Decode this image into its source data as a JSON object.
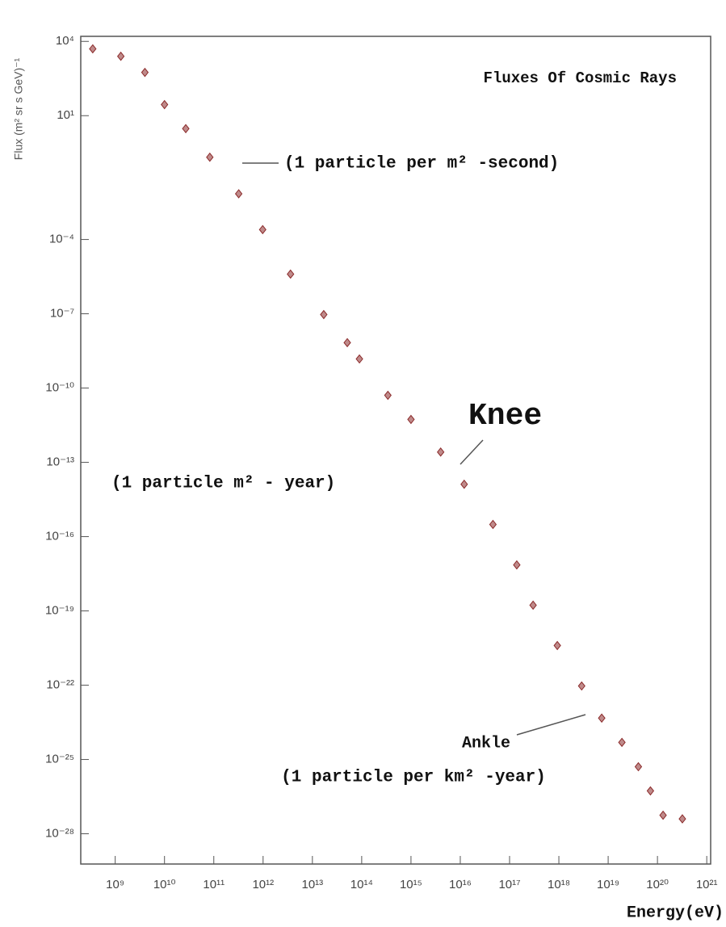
{
  "chart_data": {
    "type": "scatter",
    "title": "Fluxes Of Cosmic Rays",
    "x_label": "Energy(eV)",
    "y_label": "Flux (m² sr s GeV)⁻¹",
    "log_x": true,
    "log_y": true,
    "color": "#8b2a2a",
    "xlim": [
      200000000.0,
      1.2e+21
    ],
    "ylim": [
      6e-30,
      16000.0
    ],
    "xticks": [
      {
        "value": 1000000000.0,
        "label": "10⁹"
      },
      {
        "value": 10000000000.0,
        "label": "10¹⁰"
      },
      {
        "value": 100000000000.0,
        "label": "10¹¹"
      },
      {
        "value": 1000000000000.0,
        "label": "10¹²"
      },
      {
        "value": 10000000000000.0,
        "label": "10¹³"
      },
      {
        "value": 100000000000000.0,
        "label": "10¹⁴"
      },
      {
        "value": 1000000000000000.0,
        "label": "10¹⁵"
      },
      {
        "value": 1e+16,
        "label": "10¹⁶"
      },
      {
        "value": 1e+17,
        "label": "10¹⁷"
      },
      {
        "value": 1e+18,
        "label": "10¹⁸"
      },
      {
        "value": 1e+19,
        "label": "10¹⁹"
      },
      {
        "value": 1e+20,
        "label": "10²⁰"
      },
      {
        "value": 1e+21,
        "label": "10²¹"
      }
    ],
    "yticks": [
      {
        "value": 10000.0,
        "label": "10⁴"
      },
      {
        "value": 10,
        "label": "10¹"
      },
      {
        "value": 0.0001,
        "label": "10⁻⁴"
      },
      {
        "value": 1e-07,
        "label": "10⁻⁷"
      },
      {
        "value": 1e-10,
        "label": "10⁻¹⁰"
      },
      {
        "value": 1e-13,
        "label": "10⁻¹³"
      },
      {
        "value": 1e-16,
        "label": "10⁻¹⁶"
      },
      {
        "value": 1e-19,
        "label": "10⁻¹⁹"
      },
      {
        "value": 1e-22,
        "label": "10⁻²²"
      },
      {
        "value": 1e-25,
        "label": "10⁻²⁵"
      },
      {
        "value": 1e-28,
        "label": "10⁻²⁸"
      }
    ],
    "x": [
      350000000.0,
      1300000000.0,
      4000000000.0,
      10000000000.0,
      27000000000.0,
      83000000000.0,
      320000000000.0,
      980000000000.0,
      3600000000000.0,
      17000000000000.0,
      51000000000000.0,
      90000000000000.0,
      340000000000000.0,
      1000000000000000.0,
      4000000000000000.0,
      1.2e+16,
      4.6e+16,
      1.4e+17,
      3e+17,
      9.3e+17,
      2.9e+18,
      7.4e+18,
      1.9e+19,
      4.1e+19,
      7.2e+19,
      1.3e+20,
      3.2e+20
    ],
    "values": [
      5000.0,
      2500.0,
      560.0,
      28,
      3,
      0.21,
      0.007,
      0.00025,
      4e-06,
      9.3e-08,
      6.8e-09,
      1.5e-09,
      5.1e-11,
      5.4e-12,
      2.6e-13,
      1.3e-14,
      3.1e-16,
      7.2e-18,
      1.7e-19,
      4e-21,
      9.3e-23,
      4.7e-24,
      4.9e-25,
      5.1e-26,
      5.4e-27,
      5.6e-28,
      4e-28
    ],
    "annotations": [
      "(1 particle per m² -second)",
      "Knee",
      "(1 particle m² - year)",
      "Ankle",
      "(1 particle per km² -year)"
    ]
  }
}
